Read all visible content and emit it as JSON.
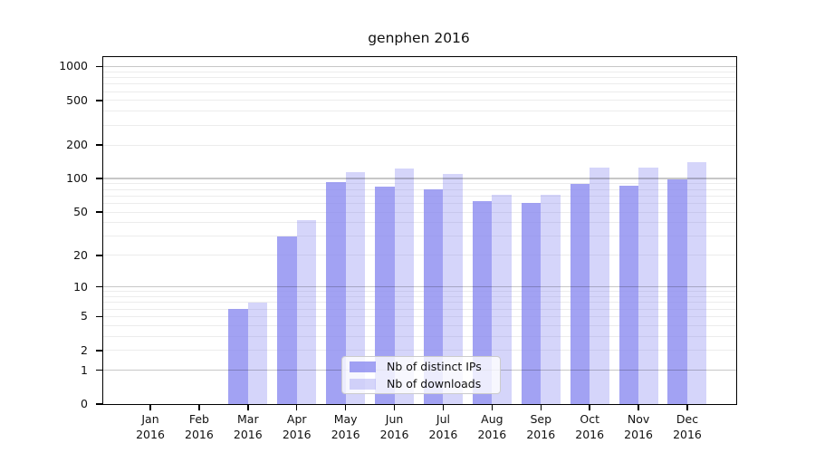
{
  "title": "genphen 2016",
  "chart_data": {
    "type": "bar",
    "title": "genphen 2016",
    "yscale": "log1p",
    "xlabel": "",
    "ylabel": "",
    "categories": [
      "Jan 2016",
      "Feb 2016",
      "Mar 2016",
      "Apr 2016",
      "May 2016",
      "Jun 2016",
      "Jul 2016",
      "Aug 2016",
      "Sep 2016",
      "Oct 2016",
      "Nov 2016",
      "Dec 2016"
    ],
    "x_tick_line1": [
      "Jan",
      "Feb",
      "Mar",
      "Apr",
      "May",
      "Jun",
      "Jul",
      "Aug",
      "Sep",
      "Oct",
      "Nov",
      "Dec"
    ],
    "x_tick_line2": "2016",
    "series": [
      {
        "name": "Nb of distinct IPs",
        "values": [
          0,
          0,
          6,
          30,
          93,
          84,
          80,
          63,
          60,
          90,
          87,
          98
        ]
      },
      {
        "name": "Nb of downloads",
        "values": [
          0,
          0,
          7,
          42,
          114,
          123,
          110,
          72,
          72,
          126,
          126,
          140
        ]
      }
    ],
    "yticks": [
      0,
      1,
      2,
      5,
      10,
      20,
      50,
      100,
      200,
      500,
      1000
    ],
    "minor_gridlines": [
      2,
      3,
      4,
      5,
      6,
      7,
      8,
      9,
      20,
      30,
      40,
      50,
      60,
      70,
      80,
      90,
      200,
      300,
      400,
      500,
      600,
      700,
      800,
      900
    ],
    "major_gridlines": [
      1,
      10,
      100,
      1000
    ],
    "ylim": [
      0,
      1215
    ],
    "grid": true,
    "legend_position": "lower-center"
  },
  "legend": {
    "items": [
      {
        "label": "Nb of distinct IPs"
      },
      {
        "label": "Nb of downloads"
      }
    ]
  },
  "colors": {
    "bar_distinct_ips": "rgba(134,134,240,0.77)",
    "bar_downloads": "rgba(134,134,240,0.35)",
    "grid_minor": "#ececec",
    "grid_major": "rgba(0,0,0,0.22)",
    "spine": "#000000",
    "background": "#ffffff"
  }
}
